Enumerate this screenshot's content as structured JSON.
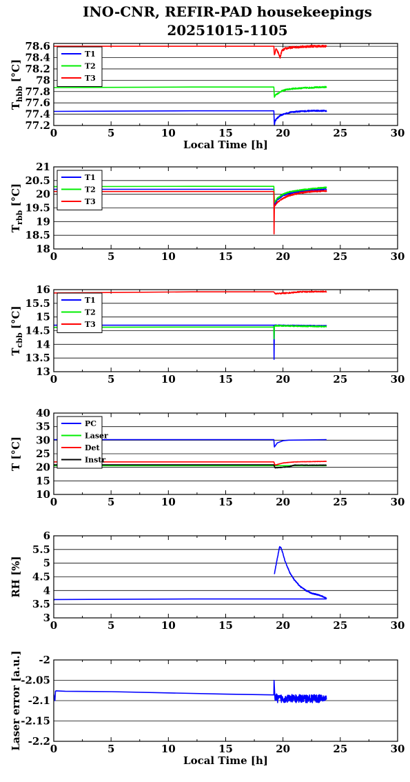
{
  "title": "INO-CNR, REFIR-PAD housekeepings",
  "subtitle": "20251015-1105",
  "colors": {
    "blue": "#0000ff",
    "green": "#00ee00",
    "red": "#ff0000",
    "black": "#000000"
  },
  "chart_data": [
    {
      "type": "line",
      "ylabel_main": "T",
      "ylabel_sub": "hbb",
      "ylabel_tail": " [°C]",
      "xlabel": "Local Time [h]",
      "xlim": [
        0,
        30
      ],
      "ylim": [
        77.2,
        78.65
      ],
      "xticks": [
        0,
        5,
        10,
        15,
        20,
        25,
        30
      ],
      "yticks": [
        77.2,
        77.4,
        77.6,
        77.8,
        78,
        78.2,
        78.4,
        78.6
      ],
      "ytick_labels": [
        "77.2",
        "77.4",
        "77.6",
        "77.8",
        "78",
        "78.2",
        "78.4",
        "78.6"
      ],
      "legend": "top-left",
      "series": [
        {
          "name": "T1",
          "color": "blue",
          "x": [
            0,
            12,
            19.2,
            19.25,
            19.3,
            19.45,
            19.6,
            19.8,
            20.2,
            20.8,
            21.5,
            22.5,
            23.8
          ],
          "y": [
            77.45,
            77.46,
            77.46,
            77.2,
            77.28,
            77.32,
            77.35,
            77.38,
            77.41,
            77.44,
            77.45,
            77.46,
            77.46
          ],
          "noise": 0.012,
          "noise_from": 19.3
        },
        {
          "name": "T2",
          "color": "green",
          "x": [
            0,
            12,
            19.2,
            19.25,
            19.35,
            19.5,
            19.8,
            20.2,
            20.8,
            21.5,
            22.5,
            23.8
          ],
          "y": [
            77.87,
            77.88,
            77.88,
            77.7,
            77.74,
            77.76,
            77.8,
            77.83,
            77.85,
            77.86,
            77.87,
            77.88
          ],
          "noise": 0.012,
          "noise_from": 19.3
        },
        {
          "name": "T3",
          "color": "red",
          "x": [
            0,
            19.2,
            19.25,
            19.4,
            19.6,
            19.75,
            19.9,
            20.2,
            20.8,
            21.5,
            22.5,
            23.8
          ],
          "y": [
            78.6,
            78.6,
            78.45,
            78.55,
            78.48,
            78.4,
            78.52,
            78.56,
            78.58,
            78.59,
            78.6,
            78.6
          ],
          "noise": 0.018,
          "noise_from": 19.3
        }
      ]
    },
    {
      "type": "line",
      "ylabel_main": "T",
      "ylabel_sub": "rbb",
      "ylabel_tail": " [°C]",
      "xlim": [
        0,
        30
      ],
      "ylim": [
        18,
        21
      ],
      "xticks": [
        0,
        5,
        10,
        15,
        20,
        25,
        30
      ],
      "yticks": [
        18,
        18.5,
        19,
        19.5,
        20,
        20.5,
        21
      ],
      "ytick_labels": [
        "18",
        "18.5",
        "19",
        "19.5",
        "20",
        "20.5",
        "21"
      ],
      "legend": "top-left",
      "series": [
        {
          "name": "T1",
          "color": "blue",
          "x": [
            0,
            19.2,
            19.25,
            19.5,
            20,
            20.5,
            21.5,
            22.5,
            23.8
          ],
          "y": [
            20.18,
            20.18,
            19.6,
            19.8,
            19.95,
            20.03,
            20.1,
            20.15,
            20.18
          ],
          "noise": 0.02,
          "noise_from": 19.3
        },
        {
          "name": "T2",
          "color": "green",
          "x": [
            0,
            12,
            19.2,
            19.25,
            19.5,
            20,
            20.5,
            21.5,
            22.5,
            23.8
          ],
          "y": [
            20.28,
            20.29,
            20.29,
            19.7,
            19.85,
            20,
            20.08,
            20.15,
            20.2,
            20.25
          ],
          "noise": 0.02,
          "noise_from": 19.3
        },
        {
          "name": "T3",
          "color": "red",
          "x": [
            0,
            19.2,
            19.22,
            19.25,
            19.5,
            20,
            20.5,
            21.5,
            22.5,
            23.8
          ],
          "y": [
            20.1,
            20.1,
            18.55,
            19.55,
            19.7,
            19.85,
            19.95,
            20.05,
            20.1,
            20.12
          ],
          "noise": 0.025,
          "noise_from": 19.3
        }
      ]
    },
    {
      "type": "line",
      "ylabel_main": "T",
      "ylabel_sub": "cbb",
      "ylabel_tail": " [°C]",
      "xlim": [
        0,
        30
      ],
      "ylim": [
        13,
        16
      ],
      "xticks": [
        0,
        5,
        10,
        15,
        20,
        25,
        30
      ],
      "yticks": [
        13,
        13.5,
        14,
        14.5,
        15,
        15.5,
        16
      ],
      "ytick_labels": [
        "13",
        "13.5",
        "14",
        "14.5",
        "15",
        "15.5",
        "16"
      ],
      "legend": "top-left",
      "series": [
        {
          "name": "T1",
          "color": "blue",
          "x": [
            0,
            12,
            19.2,
            19.22,
            19.25,
            23.8
          ],
          "y": [
            14.7,
            14.7,
            14.7,
            13.45,
            14.7,
            14.68
          ],
          "noise": 0.01,
          "noise_from": 19.3
        },
        {
          "name": "T2",
          "color": "green",
          "x": [
            0,
            12,
            19.2,
            19.22,
            19.25,
            23.8
          ],
          "y": [
            14.62,
            14.63,
            14.63,
            14.2,
            14.68,
            14.65
          ],
          "noise": 0.02,
          "noise_from": 19.3
        },
        {
          "name": "T3",
          "color": "red",
          "x": [
            0,
            12,
            19.2,
            19.3,
            20.5,
            21.5,
            23.8
          ],
          "y": [
            15.88,
            15.92,
            15.92,
            15.85,
            15.88,
            15.92,
            15.93
          ],
          "noise": 0.02,
          "noise_from": 19.3
        }
      ]
    },
    {
      "type": "line",
      "ylabel_main": "T",
      "ylabel_sub": "",
      "ylabel_tail": " [°C]",
      "xlim": [
        0,
        30
      ],
      "ylim": [
        10,
        40
      ],
      "xticks": [
        0,
        5,
        10,
        15,
        20,
        25,
        30
      ],
      "yticks": [
        10,
        15,
        20,
        25,
        30,
        35,
        40
      ],
      "ytick_labels": [
        "10",
        "15",
        "20",
        "25",
        "30",
        "35",
        "40"
      ],
      "legend": "top-left",
      "series": [
        {
          "name": "PC",
          "color": "blue",
          "x": [
            0,
            19.2,
            19.25,
            19.5,
            20,
            20.5,
            23.8
          ],
          "y": [
            30.2,
            30.2,
            27.5,
            29,
            29.8,
            30,
            30.2
          ],
          "noise": 0,
          "noise_from": 30
        },
        {
          "name": "Laser",
          "color": "green",
          "x": [
            0,
            23.8
          ],
          "y": [
            20.6,
            20.6
          ],
          "noise": 0,
          "noise_from": 30
        },
        {
          "name": "Det",
          "color": "red",
          "x": [
            0,
            19.2,
            19.3,
            20,
            21,
            23.8
          ],
          "y": [
            22,
            22,
            20.8,
            21.6,
            22,
            22.2
          ],
          "noise": 0.05,
          "noise_from": 19.3
        },
        {
          "name": "Instr",
          "color": "black",
          "x": [
            0,
            19.2,
            19.3,
            20.5,
            21,
            23.8
          ],
          "y": [
            20.9,
            20.9,
            19.8,
            20.2,
            20.8,
            20.8
          ],
          "noise": 0.08,
          "noise_from": 19.3
        }
      ]
    },
    {
      "type": "line",
      "ylabel_main": "RH [%]",
      "ylabel_sub": "",
      "ylabel_tail": "",
      "xlim": [
        0,
        30
      ],
      "ylim": [
        3,
        6
      ],
      "xticks": [
        0,
        5,
        10,
        15,
        20,
        25,
        30
      ],
      "yticks": [
        3,
        3.5,
        4,
        4.5,
        5,
        5.5,
        6
      ],
      "ytick_labels": [
        "3",
        "3.5",
        "4",
        "4.5",
        "5",
        "5.5",
        "6"
      ],
      "legend": "none",
      "series": [
        {
          "name": "",
          "color": "blue",
          "x": [
            0,
            0.02,
            0.05,
            12,
            23.8
          ],
          "y": [
            3.7,
            3.65,
            3.67,
            3.69,
            3.69
          ],
          "noise": 0,
          "noise_from": 30
        },
        {
          "name": "",
          "color": "blue",
          "x": [
            19.25,
            19.45,
            19.7,
            19.85,
            20.2,
            20.6,
            21,
            21.5,
            22,
            22.5,
            23,
            23.5,
            23.8
          ],
          "y": [
            4.6,
            5.05,
            5.6,
            5.55,
            5.05,
            4.65,
            4.38,
            4.15,
            4.0,
            3.9,
            3.85,
            3.78,
            3.7
          ],
          "noise": 0.02,
          "noise_from": 19.3
        }
      ]
    },
    {
      "type": "line",
      "ylabel_main": "Laser error [a.u.]",
      "ylabel_sub": "",
      "ylabel_tail": "",
      "xlabel": "Local Time [h]",
      "xlim": [
        0,
        30
      ],
      "ylim": [
        -2.2,
        -2
      ],
      "xticks": [
        0,
        5,
        10,
        15,
        20,
        25,
        30
      ],
      "yticks": [
        -2.2,
        -2.15,
        -2.1,
        -2.05,
        -2
      ],
      "ytick_labels": [
        "-2.2",
        "-2.15",
        "-2.1",
        "-2.05",
        "-2"
      ],
      "legend": "none",
      "series": [
        {
          "name": "",
          "color": "blue",
          "x": [
            0,
            0.1,
            0.15,
            0.2,
            1,
            5,
            10,
            15,
            19.2,
            19.22,
            19.3,
            19.5,
            23.8
          ],
          "y": [
            -2.085,
            -2.1,
            -2.077,
            -2.076,
            -2.077,
            -2.078,
            -2.081,
            -2.084,
            -2.086,
            -2.05,
            -2.09,
            -2.095,
            -2.095
          ],
          "noise": 0.01,
          "noise_from": 19.3
        }
      ]
    }
  ]
}
